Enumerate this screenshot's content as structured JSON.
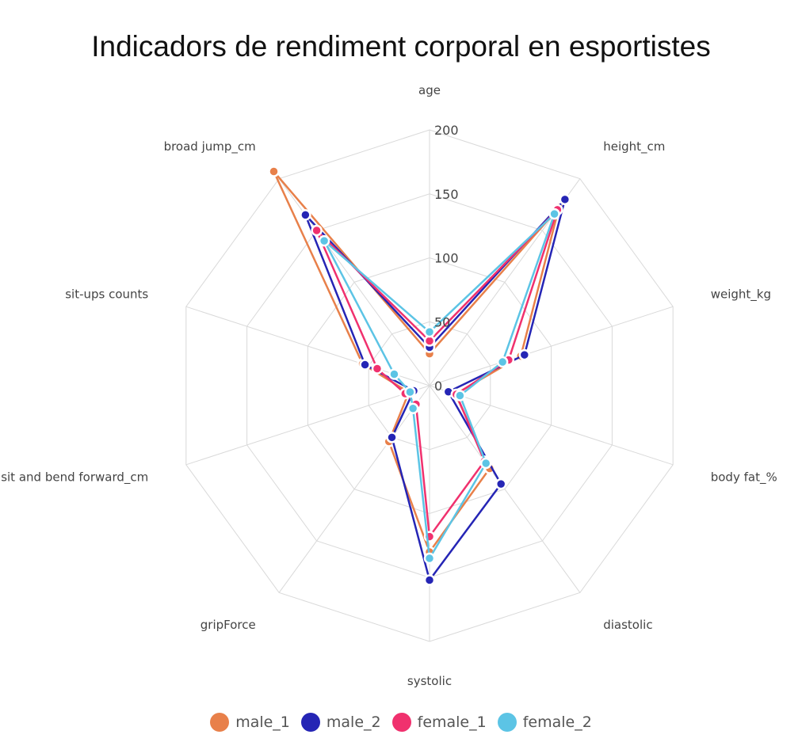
{
  "chart_data": {
    "type": "radar",
    "title": "Indicadors de rendiment corporal en esportistes",
    "axes": [
      "age",
      "height_cm",
      "weight_kg",
      "body fat_%",
      "diastolic",
      "systolic",
      "gripForce",
      "sit and bend forward_cm",
      "sit-ups counts",
      "broad jump_cm"
    ],
    "radial_ticks": [
      0,
      50,
      100,
      150,
      200
    ],
    "rlim": [
      0,
      200
    ],
    "legend_position": "bottom",
    "grid": true,
    "series": [
      {
        "name": "male_1",
        "color": "#E8804A",
        "values": [
          25,
          172,
          75,
          21.3,
          80,
          130,
          54,
          17,
          55,
          207
        ]
      },
      {
        "name": "male_2",
        "color": "#2525B5",
        "values": [
          30,
          180,
          78,
          15.5,
          95,
          152,
          50,
          13,
          53,
          165
        ]
      },
      {
        "name": "female_1",
        "color": "#F0316E",
        "values": [
          35,
          170,
          65,
          22,
          73,
          118,
          18,
          20,
          43,
          150
        ]
      },
      {
        "name": "female_2",
        "color": "#5CC4E5",
        "values": [
          42,
          166,
          60,
          25,
          75,
          135,
          22,
          16,
          29,
          140
        ]
      }
    ]
  }
}
